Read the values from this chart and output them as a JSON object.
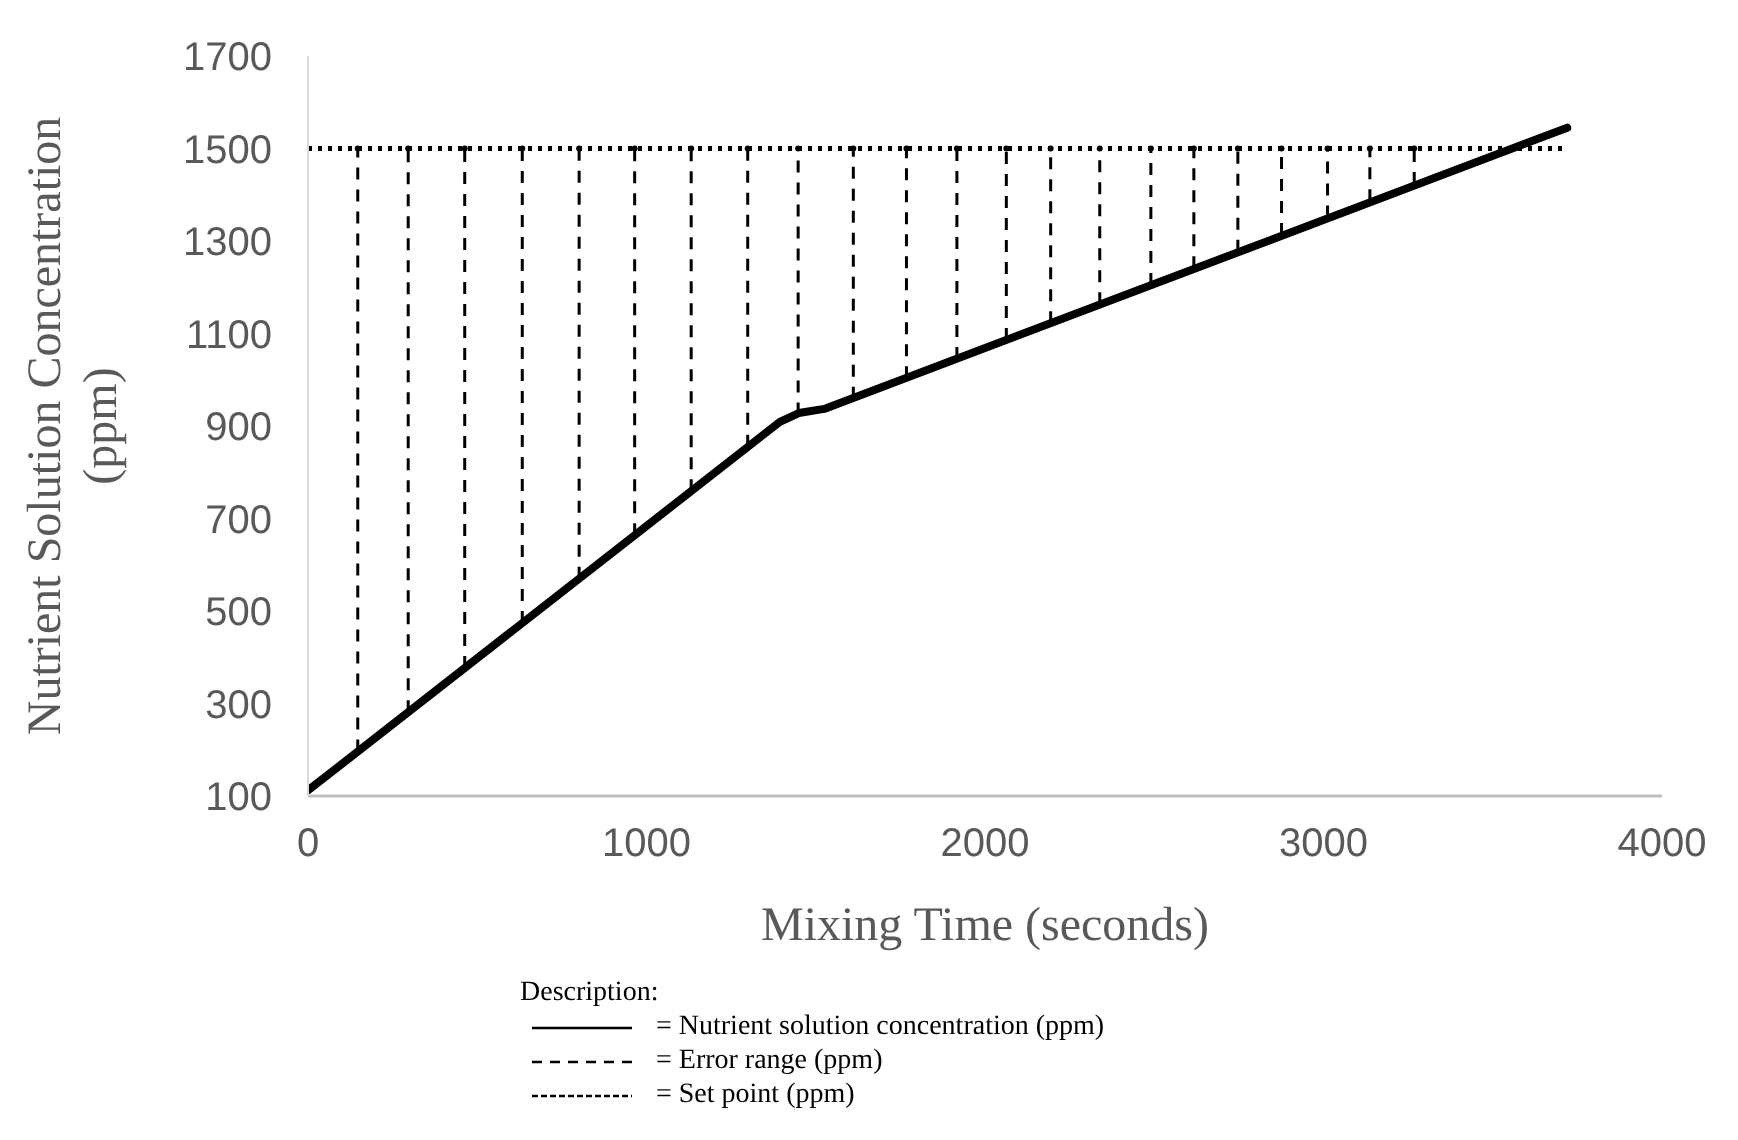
{
  "chart_data": {
    "type": "line",
    "xlabel": "Mixing Time (seconds)",
    "ylabel": "Nutrient Solution Concentration (ppm)",
    "legend_title": "Description:",
    "xlim": [
      0,
      4000
    ],
    "xticks": [
      0,
      1000,
      2000,
      3000,
      4000
    ],
    "ylim": [
      100,
      1700
    ],
    "yticks": [
      100,
      300,
      500,
      700,
      900,
      1100,
      1300,
      1500,
      1700
    ],
    "grid": false,
    "legend": "bottom",
    "series": [
      {
        "name": "= Nutrient solution concentration (ppm)",
        "line_style": "solid",
        "color": "#000000",
        "x": [
          0,
          1394,
          1450,
          1525,
          3720
        ],
        "values": [
          112,
          909,
          928,
          937,
          1545
        ]
      },
      {
        "name": "= Error range (ppm)",
        "type": "scatter",
        "line_style": "dashed",
        "color": "#000000",
        "x": [
          147,
          296,
          463,
          633,
          801,
          965,
          1132,
          1299,
          1448,
          1611,
          1768,
          1917,
          2063,
          2194,
          2339,
          2490,
          2617,
          2747,
          2876,
          3012,
          3137,
          3268
        ],
        "values": [
          1500,
          1500,
          1500,
          1500,
          1500,
          1500,
          1500,
          1500,
          1500,
          1500,
          1500,
          1500,
          1500,
          1500,
          1500,
          1500,
          1500,
          1500,
          1500,
          1500,
          1500,
          1500
        ],
        "errors": [
          [
            196,
            1500
          ],
          [
            281,
            1500
          ],
          [
            377,
            1500
          ],
          [
            474,
            1500
          ],
          [
            570,
            1500
          ],
          [
            664,
            1500
          ],
          [
            759,
            1500
          ],
          [
            855,
            1500
          ],
          [
            925,
            1500
          ],
          [
            959,
            1500
          ],
          [
            1003,
            1500
          ],
          [
            1045,
            1500
          ],
          [
            1086,
            1500
          ],
          [
            1122,
            1500
          ],
          [
            1163,
            1500
          ],
          [
            1205,
            1500
          ],
          [
            1241,
            1500
          ],
          [
            1277,
            1500
          ],
          [
            1313,
            1500
          ],
          [
            1351,
            1500
          ],
          [
            1386,
            1500
          ],
          [
            1423,
            1500
          ]
        ]
      },
      {
        "name": "= Set point (ppm)",
        "line_style": "dotted",
        "color": "#000000",
        "x": [
          0,
          3720
        ],
        "values": [
          1500,
          1500
        ]
      }
    ]
  }
}
